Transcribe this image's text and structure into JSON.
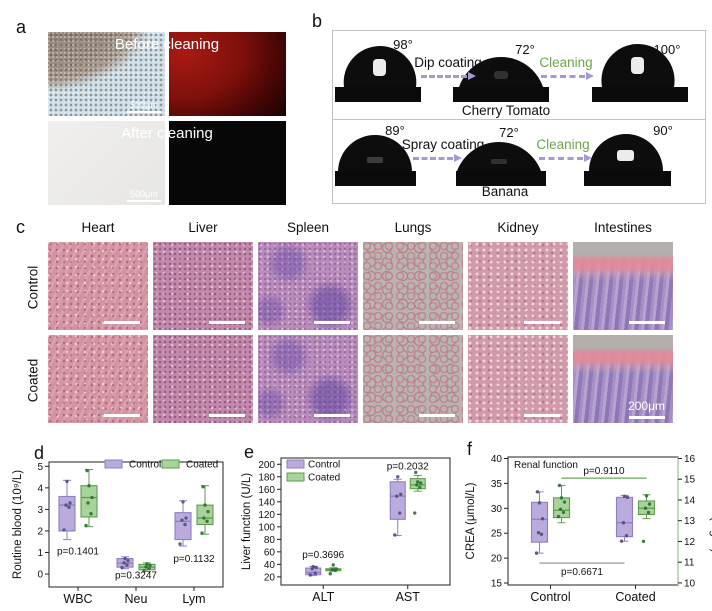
{
  "panels": {
    "a": {
      "label": "a",
      "before_label": "Before cleaning",
      "after_label": "After cleaning",
      "scale_bar": "500μm"
    },
    "b": {
      "label": "b",
      "rows": [
        {
          "angles": [
            "98°",
            "72°",
            "100°"
          ],
          "process": "Dip coating",
          "cleaning": "Cleaning",
          "item": "Cherry Tomato"
        },
        {
          "angles": [
            "89°",
            "72°",
            "90°"
          ],
          "process": "Spray coating",
          "cleaning": "Cleaning",
          "item": "Banana"
        }
      ]
    },
    "c": {
      "label": "c",
      "organs": [
        "Heart",
        "Liver",
        "Spleen",
        "Lungs",
        "Kidney",
        "Intestines"
      ],
      "rows": [
        "Control",
        "Coated"
      ],
      "scale_bar": "200μm"
    },
    "d": {
      "label": "d"
    },
    "e": {
      "label": "e"
    },
    "f": {
      "label": "f"
    }
  },
  "colors": {
    "control_fill": "#b9abdc",
    "control_stroke": "#8f7fc4",
    "coated_fill": "#a7d49b",
    "coated_stroke": "#5f9e50",
    "cleaning_green": "#6fa24d",
    "arrow_purple": "#a59ad6",
    "bracket_green": "#6aa84f",
    "bracket_gray": "#8f8f8f"
  },
  "chart_data": [
    {
      "id": "d",
      "type": "boxplot",
      "ylabel": "Routine blood (10⁹/L)",
      "ylim": [
        -0.6,
        5.2
      ],
      "yticks": [
        0,
        1,
        2,
        3,
        4,
        5
      ],
      "categories": [
        "WBC",
        "Neu",
        "Lym"
      ],
      "legend": "top-right",
      "series": [
        {
          "name": "Control",
          "axis": "left",
          "fill": "#b9abdc",
          "stroke": "#8f7fc4",
          "point": "#564a7e"
        },
        {
          "name": "Coated",
          "axis": "left",
          "fill": "#a7d49b",
          "stroke": "#5f9e50",
          "point": "#2f6b33"
        }
      ],
      "groups": [
        {
          "category": "WBC",
          "boxes": [
            {
              "low": 1.6,
              "q1": 2.0,
              "med": 3.2,
              "q3": 3.6,
              "high": 4.35,
              "points": [
                2.05,
                3.1,
                3.2,
                3.3,
                4.3
              ]
            },
            {
              "low": 2.2,
              "q1": 2.65,
              "med": 3.55,
              "q3": 4.1,
              "high": 4.85,
              "points": [
                2.25,
                2.8,
                3.3,
                3.55,
                4.1,
                4.8
              ]
            }
          ]
        },
        {
          "category": "Neu",
          "boxes": [
            {
              "low": 0.25,
              "q1": 0.32,
              "med": 0.5,
              "q3": 0.72,
              "high": 0.8,
              "points": [
                0.3,
                0.42,
                0.52,
                0.62,
                0.72
              ]
            },
            {
              "low": 0.12,
              "q1": 0.2,
              "med": 0.32,
              "q3": 0.45,
              "high": 0.52,
              "points": [
                0.15,
                0.25,
                0.33,
                0.4,
                0.47
              ]
            }
          ]
        },
        {
          "category": "Lym",
          "boxes": [
            {
              "low": 1.3,
              "q1": 1.6,
              "med": 2.45,
              "q3": 2.85,
              "high": 3.4,
              "points": [
                1.4,
                2.3,
                2.5,
                2.6,
                3.35
              ]
            },
            {
              "low": 1.85,
              "q1": 2.3,
              "med": 2.6,
              "q3": 3.2,
              "high": 4.1,
              "points": [
                1.9,
                2.45,
                2.6,
                2.9,
                3.2,
                4.05
              ]
            }
          ]
        }
      ],
      "annotations": [
        {
          "text": "p=0.1401",
          "cat": 0,
          "y": 0.9
        },
        {
          "text": "p=0.3247",
          "cat": 1,
          "y": -0.2
        },
        {
          "text": "p=0.1132",
          "cat": 2,
          "y": 0.55
        }
      ]
    },
    {
      "id": "e",
      "type": "boxplot",
      "ylabel": "Liver function (U/L)",
      "ylim": [
        7,
        210
      ],
      "yticks": [
        20,
        40,
        60,
        80,
        100,
        120,
        140,
        160,
        180,
        200
      ],
      "categories": [
        "ALT",
        "AST"
      ],
      "legend": "top-left",
      "series": [
        {
          "name": "Control",
          "axis": "left",
          "fill": "#b9abdc",
          "stroke": "#8f7fc4",
          "point": "#564a7e"
        },
        {
          "name": "Coated",
          "axis": "left",
          "fill": "#a7d49b",
          "stroke": "#5f9e50",
          "point": "#2f6b33"
        }
      ],
      "groups": [
        {
          "category": "ALT",
          "boxes": [
            {
              "low": 22,
              "q1": 23.5,
              "med": 27,
              "q3": 34,
              "high": 36.5,
              "points": [
                23,
                26,
                33,
                35,
                36.5
              ]
            },
            {
              "low": 29,
              "q1": 30,
              "med": 31.5,
              "q3": 33,
              "high": 34.5,
              "points": [
                25,
                30.5,
                31.5,
                32.5,
                39
              ]
            }
          ]
        },
        {
          "category": "AST",
          "boxes": [
            {
              "low": 86,
              "q1": 112,
              "med": 149,
              "q3": 172,
              "high": 176,
              "points": [
                87,
                122,
                149,
                152,
                180
              ]
            },
            {
              "low": 157,
              "q1": 161,
              "med": 167,
              "q3": 177,
              "high": 182,
              "points": [
                122,
                163,
                167,
                170,
                172,
                187
              ]
            }
          ]
        }
      ],
      "annotations": [
        {
          "text": "p=0.3696",
          "cat": 0,
          "y": 50
        },
        {
          "text": "p=0.2032",
          "cat": 1,
          "y": 192
        }
      ]
    },
    {
      "id": "f",
      "type": "boxplot",
      "title_inside": "Renal function",
      "ylabel": "CREA (μmol/L)",
      "ylim": [
        14.6,
        40.3
      ],
      "yticks": [
        15,
        20,
        25,
        30,
        35,
        40
      ],
      "right": {
        "ylabel": "BUN (mg/dl)",
        "ylim": [
          9.9,
          16.07
        ],
        "yticks": [
          10,
          11,
          12,
          13,
          14,
          15,
          16
        ]
      },
      "categories": [
        "Control",
        "Coated"
      ],
      "series": [
        {
          "name": "CREA",
          "axis": "left",
          "fill": "#b9abdc",
          "stroke": "#8f7fc4",
          "point": "#564a7e"
        },
        {
          "name": "BUN",
          "axis": "right",
          "fill": "#a7d49b",
          "stroke": "#5f9e50",
          "point": "#2f6b33"
        }
      ],
      "groups": [
        {
          "category": "Control",
          "boxes": [
            {
              "low": 21,
              "q1": 23.2,
              "med": 27.8,
              "q3": 31.2,
              "high": 33.3,
              "points": [
                21,
                24.8,
                25.1,
                27.9,
                31.1,
                33.3
              ]
            },
            {
              "low": 12.9,
              "q1": 13.15,
              "med": 13.5,
              "q3": 14.1,
              "high": 14.7,
              "points": [
                13.2,
                13.4,
                13.55,
                13.9,
                14.1,
                14.7
              ]
            }
          ]
        },
        {
          "category": "Coated",
          "boxes": [
            {
              "low": 23.4,
              "q1": 24.3,
              "med": 27.1,
              "q3": 32.2,
              "high": 32.6,
              "points": [
                23.4,
                24.5,
                27.1,
                32.2,
                32.4
              ]
            },
            {
              "low": 13.1,
              "q1": 13.3,
              "med": 13.6,
              "q3": 13.95,
              "high": 14.25,
              "points": [
                12.0,
                13.4,
                13.6,
                13.8,
                14.2
              ]
            }
          ]
        }
      ],
      "brackets": [
        {
          "text": "p=0.9110",
          "series": 1,
          "y": 15.05,
          "color": "#6aa84f",
          "below": false
        },
        {
          "text": "p=0.6671",
          "series": 0,
          "y": 19.0,
          "color": "#8f8f8f",
          "below": true
        }
      ]
    }
  ]
}
